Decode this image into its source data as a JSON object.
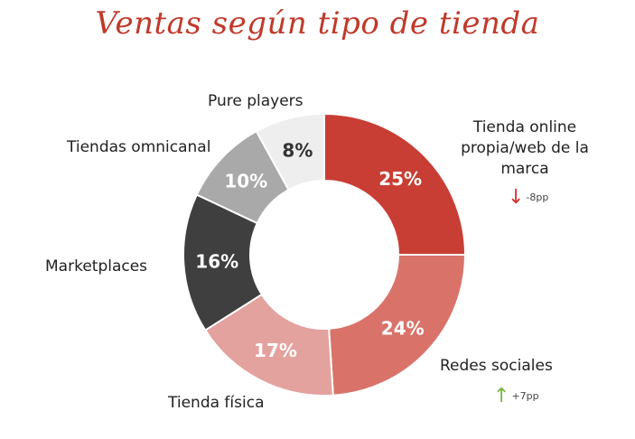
{
  "chart_data": {
    "type": "pie",
    "title": "Ventas según tipo de tienda",
    "categories": [
      "Tienda online propia/web de la marca",
      "Redes sociales",
      "Tienda física",
      "Marketplaces",
      "Tiendas omnicanal",
      "Pure players"
    ],
    "values": [
      25,
      24,
      17,
      16,
      10,
      8
    ],
    "value_labels": [
      "25%",
      "24%",
      "17%",
      "16%",
      "10%",
      "8%"
    ],
    "colors": [
      "#c83e34",
      "#d9736a",
      "#e3a29e",
      "#3f3f3f",
      "#a9a9a9",
      "#eeeeee"
    ],
    "value_label_colors": [
      "#ffffff",
      "#ffffff",
      "#ffffff",
      "#ffffff",
      "#ffffff",
      "#333333"
    ],
    "donut": true,
    "annotations": [
      {
        "category": "Tienda online propia/web de la marca",
        "direction": "down",
        "text": "-8pp",
        "color": "#d32f2f"
      },
      {
        "category": "Redes sociales",
        "direction": "up",
        "text": "+7pp",
        "color": "#7cb342"
      }
    ]
  },
  "labels": {
    "online_line1": "Tienda online",
    "online_line2": "propia/web de la",
    "online_line3": "marca",
    "redes": "Redes sociales",
    "fisica": "Tienda física",
    "marketplaces": "Marketplaces",
    "omnicanal": "Tiendas omnicanal",
    "pure": "Pure players"
  },
  "deltas": {
    "online_arrow": "↓",
    "online_text": "-8pp",
    "redes_arrow": "↑",
    "redes_text": "+7pp"
  }
}
